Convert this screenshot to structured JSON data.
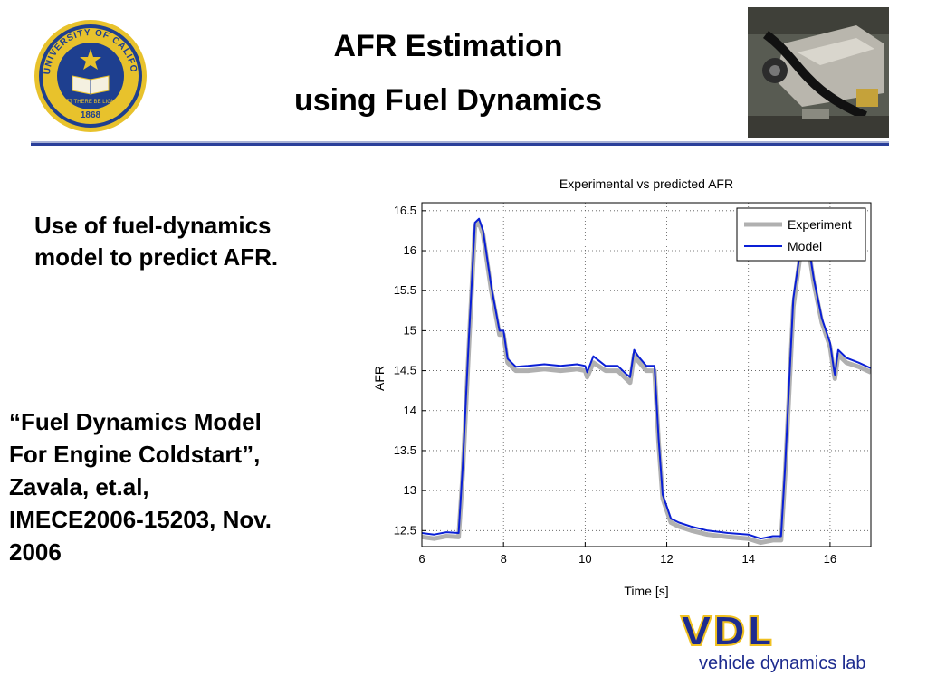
{
  "slide": {
    "title_line1": "AFR Estimation",
    "title_line2": "using Fuel Dynamics",
    "bullet1": "Use of fuel-dynamics model to predict AFR.",
    "bullet2": "“Fuel Dynamics Model\nFor Engine Coldstart”,\nZavala, et.al,\nIMECE2006-15203, Nov.\n2006"
  },
  "seal": {
    "ring_text": "THE UNIVERSITY OF CALIFORNIA",
    "motto": "LET THERE BE LIGHT",
    "year": "1868",
    "color_gold": "#e8c22c",
    "color_blue": "#1e3f8f"
  },
  "logo": {
    "letters": "VDL",
    "name": "vehicle dynamics lab",
    "color_blue": "#1d2b8f",
    "color_gold": "#f0c020"
  },
  "chart_data": {
    "type": "line",
    "title": "Experimental vs predicted AFR",
    "xlabel": "Time [s]",
    "ylabel": "AFR",
    "xlim": [
      6,
      17
    ],
    "ylim": [
      12.3,
      16.6
    ],
    "xticks": [
      6,
      8,
      10,
      12,
      14,
      16
    ],
    "yticks": [
      12.5,
      13,
      13.5,
      14,
      14.5,
      15,
      15.5,
      16,
      16.5
    ],
    "grid": true,
    "legend_position": "top-right",
    "series": [
      {
        "name": "Experiment",
        "color": "#b0b0b0",
        "x": [
          6.0,
          6.3,
          6.6,
          6.9,
          7.0,
          7.15,
          7.3,
          7.4,
          7.5,
          7.7,
          7.9,
          8.0,
          8.1,
          8.3,
          8.6,
          9.0,
          9.4,
          9.8,
          10.0,
          10.05,
          10.2,
          10.5,
          10.8,
          11.0,
          11.1,
          11.2,
          11.3,
          11.5,
          11.7,
          11.8,
          11.9,
          12.1,
          12.3,
          12.6,
          13.0,
          13.5,
          14.0,
          14.3,
          14.6,
          14.8,
          14.9,
          15.1,
          15.3,
          15.45,
          15.6,
          15.8,
          16.0,
          16.1,
          16.12,
          16.2,
          16.4,
          16.7,
          17.0
        ],
        "y": [
          12.42,
          12.4,
          12.43,
          12.42,
          13.2,
          14.8,
          16.3,
          16.35,
          16.2,
          15.5,
          14.95,
          14.95,
          14.6,
          14.5,
          14.5,
          14.52,
          14.5,
          14.52,
          14.5,
          14.42,
          14.6,
          14.5,
          14.5,
          14.4,
          14.35,
          14.7,
          14.62,
          14.5,
          14.5,
          13.6,
          12.9,
          12.6,
          12.55,
          12.5,
          12.45,
          12.42,
          12.4,
          12.35,
          12.38,
          12.38,
          13.2,
          15.3,
          16.05,
          16.1,
          15.6,
          15.1,
          14.8,
          14.45,
          14.4,
          14.7,
          14.6,
          14.55,
          14.48
        ]
      },
      {
        "name": "Model",
        "color": "#0a1fd6",
        "x": [
          6.0,
          6.3,
          6.6,
          6.9,
          7.0,
          7.15,
          7.3,
          7.4,
          7.5,
          7.7,
          7.9,
          8.0,
          8.1,
          8.3,
          8.6,
          9.0,
          9.4,
          9.8,
          10.0,
          10.05,
          10.2,
          10.5,
          10.8,
          11.0,
          11.1,
          11.2,
          11.3,
          11.5,
          11.7,
          11.8,
          11.9,
          12.1,
          12.3,
          12.6,
          13.0,
          13.5,
          14.0,
          14.3,
          14.6,
          14.8,
          14.9,
          15.1,
          15.3,
          15.45,
          15.6,
          15.8,
          16.0,
          16.1,
          16.12,
          16.2,
          16.4,
          16.7,
          17.0
        ],
        "y": [
          12.47,
          12.45,
          12.48,
          12.47,
          13.3,
          14.9,
          16.35,
          16.4,
          16.25,
          15.55,
          15.0,
          15.0,
          14.65,
          14.55,
          14.56,
          14.58,
          14.56,
          14.58,
          14.56,
          14.48,
          14.68,
          14.56,
          14.56,
          14.46,
          14.42,
          14.76,
          14.68,
          14.56,
          14.56,
          13.65,
          12.95,
          12.65,
          12.6,
          12.55,
          12.5,
          12.47,
          12.45,
          12.4,
          12.43,
          12.43,
          13.3,
          15.4,
          16.1,
          16.15,
          15.65,
          15.15,
          14.85,
          14.5,
          14.45,
          14.76,
          14.66,
          14.6,
          14.53
        ]
      }
    ]
  }
}
